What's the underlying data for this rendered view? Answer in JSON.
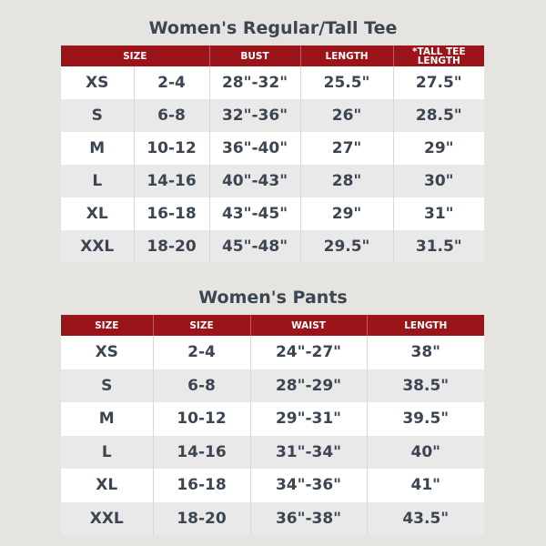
{
  "tee": {
    "title": "Women's Regular/Tall Tee",
    "headers": [
      "SIZE",
      "BUST",
      "LENGTH",
      "*TALL TEE LENGTH"
    ],
    "rows": [
      [
        "XS",
        "2-4",
        "28\"-32\"",
        "25.5\"",
        "27.5\""
      ],
      [
        "S",
        "6-8",
        "32\"-36\"",
        "26\"",
        "28.5\""
      ],
      [
        "M",
        "10-12",
        "36\"-40\"",
        "27\"",
        "29\""
      ],
      [
        "L",
        "14-16",
        "40\"-43\"",
        "28\"",
        "30\""
      ],
      [
        "XL",
        "16-18",
        "43\"-45\"",
        "29\"",
        "31\""
      ],
      [
        "XXL",
        "18-20",
        "45\"-48\"",
        "29.5\"",
        "31.5\""
      ]
    ]
  },
  "pants": {
    "title": "Women's Pants",
    "headers": [
      "SIZE",
      "SIZE",
      "WAIST",
      "LENGTH"
    ],
    "rows": [
      [
        "XS",
        "2-4",
        "24\"-27\"",
        "38\""
      ],
      [
        "S",
        "6-8",
        "28\"-29\"",
        "38.5\""
      ],
      [
        "M",
        "10-12",
        "29\"-31\"",
        "39.5\""
      ],
      [
        "L",
        "14-16",
        "31\"-34\"",
        "40\""
      ],
      [
        "XL",
        "16-18",
        "34\"-36\"",
        "41\""
      ],
      [
        "XXL",
        "18-20",
        "36\"-38\"",
        "43.5\""
      ]
    ]
  },
  "colors": {
    "header_bg": "#9b1419",
    "text": "#3c4652",
    "background": "#e6e4e0"
  }
}
